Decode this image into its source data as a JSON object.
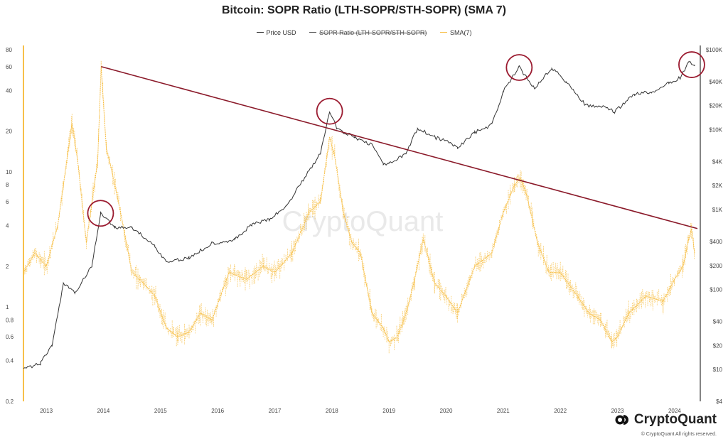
{
  "title": "Bitcoin: SOPR Ratio (LTH-SOPR/STH-SOPR) (SMA 7)",
  "legend": {
    "price": "Price USD",
    "sopr": "SOPR Ratio (LTH-SOPR/STH-SOPR)",
    "sma": "SMA(7)"
  },
  "watermark": "CryptoQuant",
  "brand": "CryptoQuant",
  "copyright": "© CryptoQuant All rights reserved.",
  "colors": {
    "price": "#333333",
    "sma": "#f7c04a",
    "trend": "#8b1a2a",
    "circle": "#9b1b30"
  },
  "chart_data": {
    "type": "line",
    "x_ticks": [
      "2013",
      "2014",
      "2015",
      "2016",
      "2017",
      "2018",
      "2019",
      "2020",
      "2021",
      "2022",
      "2023",
      "2024"
    ],
    "left_axis": {
      "scale": "log",
      "range": [
        0.2,
        80
      ],
      "ticks": [
        "80",
        "60",
        "40",
        "20",
        "10",
        "8",
        "6",
        "4",
        "2",
        "1",
        "0.8",
        "0.6",
        "0.4",
        "0.2"
      ]
    },
    "right_axis": {
      "scale": "log",
      "range": [
        4,
        100000
      ],
      "ticks": [
        "$100K",
        "$40K",
        "$20K",
        "$10K",
        "$4K",
        "$2K",
        "$1K",
        "$400",
        "$200",
        "$100",
        "$40",
        "$20",
        "$10",
        "$4"
      ]
    },
    "series": [
      {
        "name": "Price USD",
        "axis": "right",
        "x": [
          2012.6,
          2012.9,
          2013.1,
          2013.3,
          2013.5,
          2013.8,
          2013.95,
          2014.2,
          2014.5,
          2014.9,
          2015.1,
          2015.5,
          2015.9,
          2016.3,
          2016.6,
          2016.9,
          2017.2,
          2017.5,
          2017.8,
          2017.96,
          2018.1,
          2018.4,
          2018.7,
          2018.9,
          2019.0,
          2019.3,
          2019.5,
          2019.8,
          2020.0,
          2020.2,
          2020.5,
          2020.8,
          2021.0,
          2021.28,
          2021.55,
          2021.85,
          2022.1,
          2022.45,
          2022.8,
          2022.95,
          2023.3,
          2023.6,
          2023.9,
          2024.1,
          2024.25,
          2024.35
        ],
        "values": [
          10,
          12,
          20,
          120,
          90,
          200,
          900,
          600,
          600,
          350,
          220,
          250,
          380,
          420,
          650,
          750,
          1100,
          2400,
          5000,
          17000,
          10000,
          8000,
          6500,
          3800,
          3700,
          5000,
          10500,
          8000,
          7200,
          6000,
          9200,
          11500,
          30000,
          60000,
          33000,
          60000,
          40000,
          20000,
          19000,
          16600,
          28000,
          29500,
          38000,
          45000,
          70000,
          65000
        ]
      },
      {
        "name": "SMA(7)",
        "axis": "left",
        "x": [
          2012.6,
          2012.8,
          2013.0,
          2013.2,
          2013.45,
          2013.55,
          2013.7,
          2013.9,
          2013.96,
          2014.05,
          2014.15,
          2014.3,
          2014.5,
          2014.7,
          2014.9,
          2015.1,
          2015.3,
          2015.5,
          2015.7,
          2015.9,
          2016.2,
          2016.5,
          2016.8,
          2017.0,
          2017.3,
          2017.6,
          2017.8,
          2017.96,
          2018.05,
          2018.2,
          2018.35,
          2018.5,
          2018.7,
          2018.9,
          2019.0,
          2019.15,
          2019.3,
          2019.45,
          2019.6,
          2019.8,
          2020.0,
          2020.2,
          2020.5,
          2020.8,
          2021.0,
          2021.2,
          2021.3,
          2021.4,
          2021.6,
          2021.8,
          2022.0,
          2022.3,
          2022.5,
          2022.7,
          2022.9,
          2023.0,
          2023.2,
          2023.5,
          2023.8,
          2024.0,
          2024.15,
          2024.25,
          2024.3,
          2024.35
        ],
        "values": [
          1.8,
          2.5,
          2.0,
          4.0,
          23,
          12,
          3,
          12,
          60,
          15,
          10,
          5,
          1.8,
          1.5,
          1.2,
          0.7,
          0.6,
          0.65,
          0.9,
          0.8,
          1.8,
          1.6,
          2.0,
          1.8,
          2.5,
          5,
          6,
          18,
          13,
          5,
          3,
          2.5,
          0.9,
          0.7,
          0.55,
          0.6,
          0.9,
          1.6,
          3.2,
          1.5,
          1.2,
          0.9,
          2.0,
          2.5,
          5,
          8,
          9,
          7,
          3,
          1.8,
          1.8,
          1.2,
          0.9,
          0.8,
          0.55,
          0.6,
          0.9,
          1.2,
          1.1,
          1.6,
          2.0,
          3.2,
          3.8,
          2.5
        ]
      }
    ],
    "trendline": {
      "axis": "left",
      "from": [
        2013.96,
        60
      ],
      "to": [
        2024.4,
        3.8
      ]
    },
    "highlight_circles": [
      {
        "x": 2013.95,
        "axis": "right",
        "value": 900
      },
      {
        "x": 2017.96,
        "axis": "right",
        "value": 17000
      },
      {
        "x": 2021.28,
        "axis": "right",
        "value": 60000
      },
      {
        "x": 2024.3,
        "axis": "right",
        "value": 65000
      }
    ]
  }
}
